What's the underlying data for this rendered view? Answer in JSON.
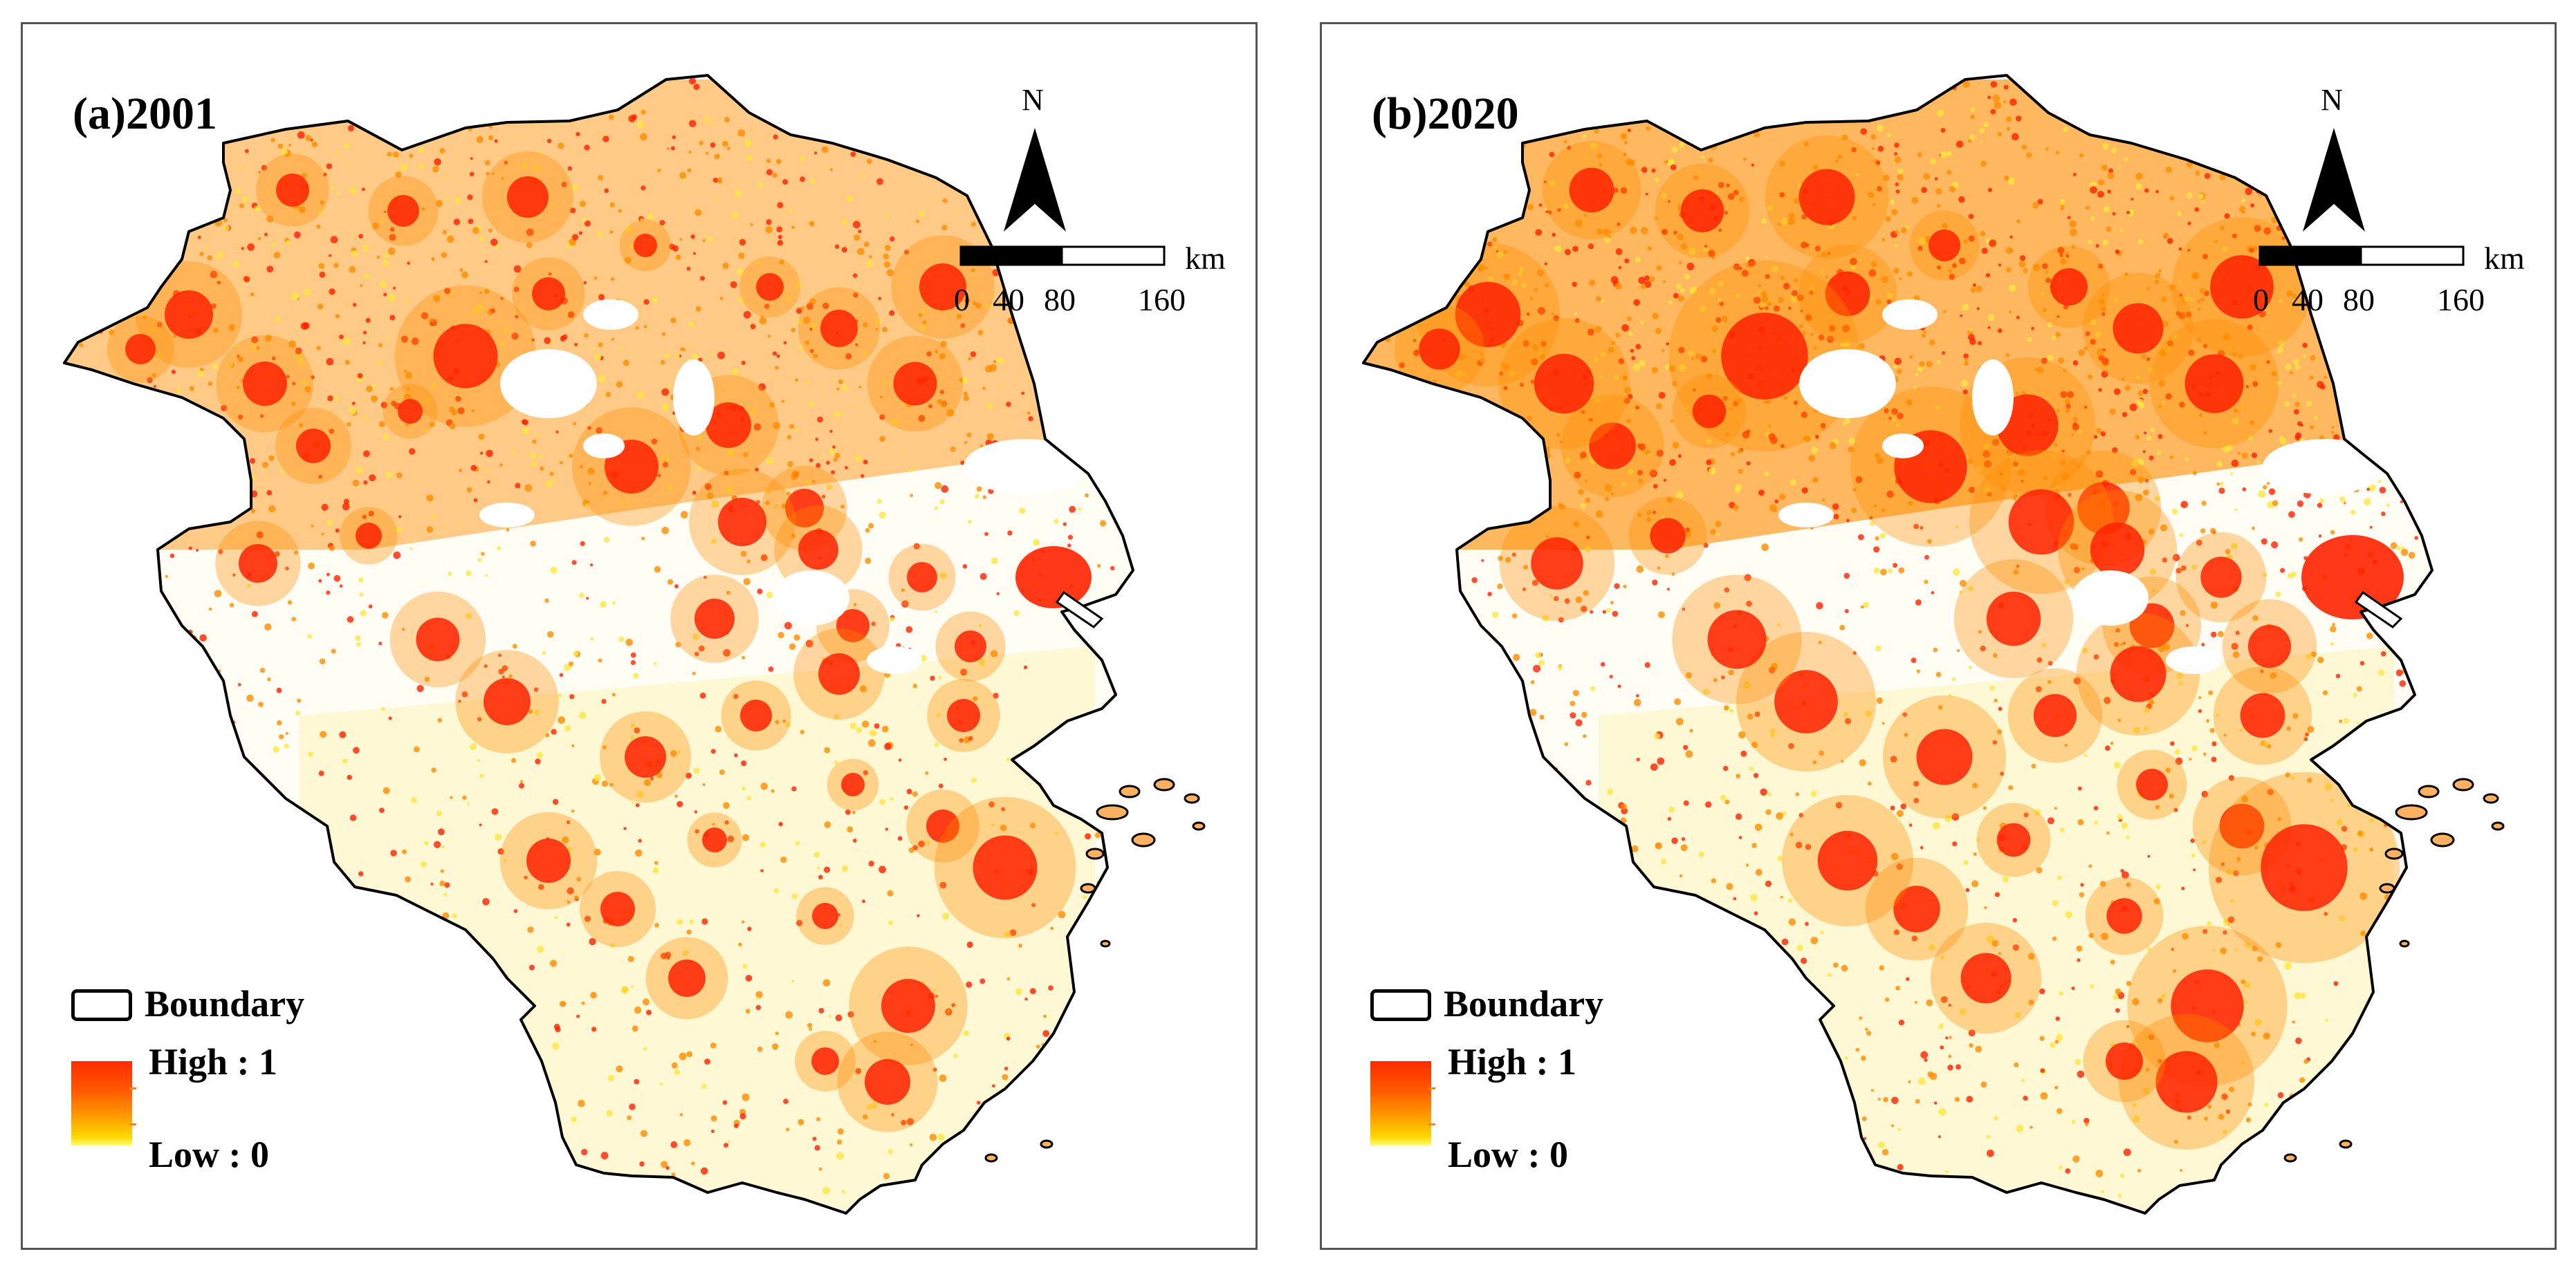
{
  "panels": [
    {
      "title": "(a)2001",
      "intensity": "lower",
      "north_label": "N",
      "scale": {
        "unit": "km",
        "ticks": [
          "0",
          "40",
          "80",
          "160"
        ]
      },
      "legend": {
        "boundary_label": "Boundary",
        "high_label": "High : 1",
        "low_label": "Low : 0"
      }
    },
    {
      "title": "(b)2020",
      "intensity": "higher",
      "north_label": "N",
      "scale": {
        "unit": "km",
        "ticks": [
          "0",
          "40",
          "80",
          "160"
        ]
      },
      "legend": {
        "boundary_label": "Boundary",
        "high_label": "High : 1",
        "low_label": "Low : 0"
      }
    }
  ],
  "colors": {
    "high": "#ff2200",
    "mid": "#ff8c00",
    "low": "#ffe640",
    "boundary": "#000000",
    "water": "#ffffff"
  },
  "icons": [
    "north-arrow-icon",
    "scale-bar-icon"
  ]
}
